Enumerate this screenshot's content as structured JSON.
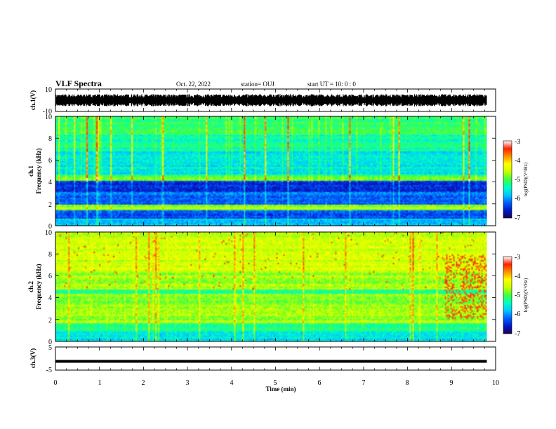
{
  "header": {
    "title": "VLF Spectra",
    "date": "Oct. 22, 2022",
    "station": "station= OUJ",
    "start_ut": "start  UT =   10: 0  : 0"
  },
  "chart_data": {
    "type": "heatmap",
    "x_axis": {
      "label": "Time  (min)",
      "range": [
        0,
        10
      ],
      "ticks": [
        "0",
        "1",
        "2",
        "3",
        "4",
        "5",
        "6",
        "7",
        "8",
        "9",
        "10"
      ]
    },
    "panels": [
      {
        "id": "ch1-waveform",
        "type": "line",
        "ylabel": "ch.1(V)",
        "ylim": [
          -10,
          10
        ],
        "ticks": [
          "10",
          "-10"
        ],
        "description_level": 0
      },
      {
        "id": "ch1-spectrogram",
        "type": "heatmap",
        "ylabel_line1": "ch.1",
        "ylabel_line2": "Frequency  (kHz)",
        "ylim": [
          0,
          10
        ],
        "ticks": [
          "0",
          "2",
          "4",
          "6",
          "8",
          "10"
        ],
        "colorbar": {
          "label": "log(PSD)(V²/Hz)",
          "range": [
            -7,
            -3
          ],
          "ticks": [
            "-3",
            "-4",
            "-5",
            "-6",
            "-7"
          ]
        }
      },
      {
        "id": "ch2-spectrogram",
        "type": "heatmap",
        "ylabel_line1": "ch.2",
        "ylabel_line2": "Frequency  (kHz)",
        "ylim": [
          0,
          10
        ],
        "ticks": [
          "0",
          "2",
          "4",
          "6",
          "8",
          "10"
        ],
        "colorbar": {
          "label": "log(PSD)(V²/Hz)",
          "range": [
            -7,
            -3
          ],
          "ticks": [
            "-3",
            "-4",
            "-5",
            "-6",
            "-7"
          ]
        }
      },
      {
        "id": "ch3-waveform",
        "type": "line",
        "ylabel": "ch.3(V)",
        "ylim": [
          -5,
          5
        ],
        "ticks": [
          "5",
          "-5"
        ],
        "description_level": -1.2
      }
    ],
    "data_end_min": 9.8,
    "colormap": [
      "#1a005a",
      "#0018c8",
      "#0060ff",
      "#00c8ff",
      "#00ffc0",
      "#40ff40",
      "#c8ff00",
      "#ffff00",
      "#ff9000",
      "#ff2000",
      "#ffffff"
    ]
  }
}
